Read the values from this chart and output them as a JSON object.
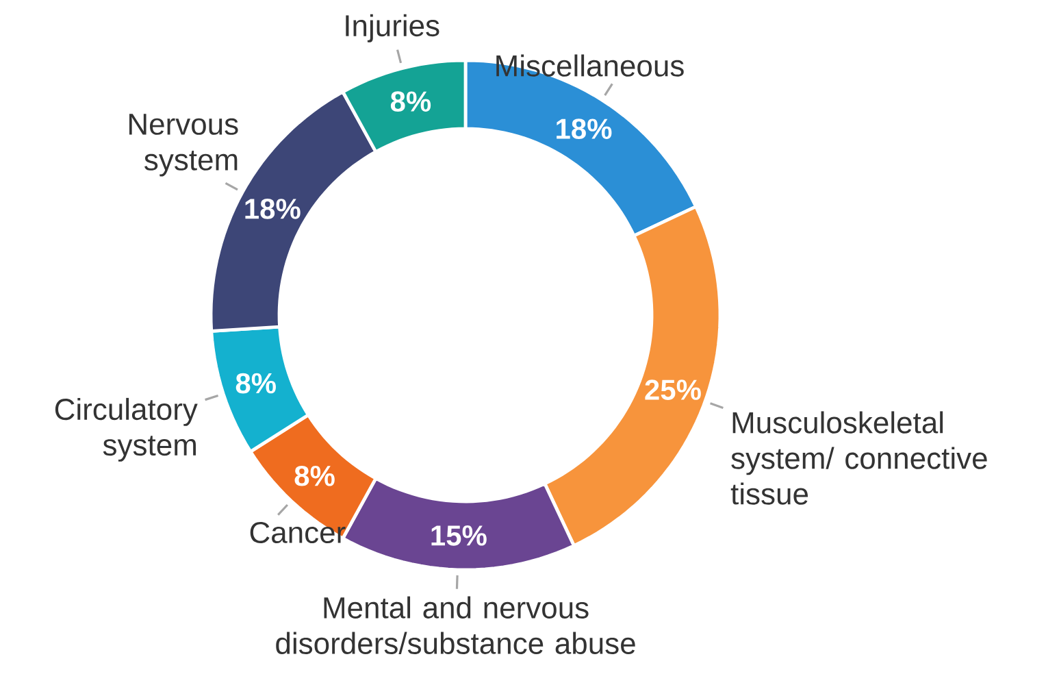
{
  "chart_data": {
    "type": "donut",
    "categories": [
      "Miscellaneous",
      "Musculoskeletal system/ connective tissue",
      "Mental and nervous disorders/substance abuse",
      "Cancer",
      "Circulatory system",
      "Nervous system",
      "Injuries"
    ],
    "values": [
      18,
      25,
      15,
      8,
      8,
      18,
      8
    ],
    "value_labels": [
      "18%",
      "25%",
      "15%",
      "8%",
      "8%",
      "18%",
      "8%"
    ],
    "colors": [
      "#2b8fd6",
      "#f7943c",
      "#6a4592",
      "#ef6c1f",
      "#14b1cf",
      "#3d4677",
      "#14a395"
    ]
  }
}
